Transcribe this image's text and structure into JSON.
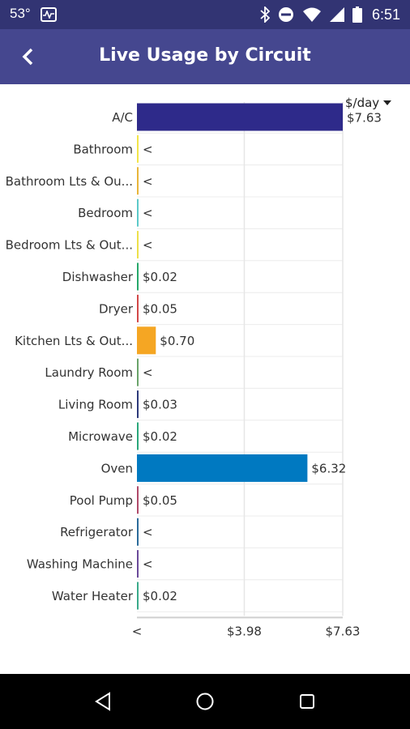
{
  "status_bar": {
    "temperature": "53°",
    "time": "6:51",
    "icons": [
      "activity-icon",
      "bluetooth-icon",
      "do-not-disturb-icon",
      "wifi-icon",
      "signal-icon",
      "battery-icon"
    ]
  },
  "app_bar": {
    "title": "Live Usage by Circuit",
    "back_icon": "chevron-left-icon"
  },
  "unit_selector": {
    "label": "$/day",
    "icon": "caret-down-icon"
  },
  "chart_data": {
    "type": "bar",
    "orientation": "horizontal",
    "unit": "$/day",
    "categories": [
      "A/C",
      "Bathroom",
      "Bathroom Lts & Ou...",
      "Bedroom",
      "Bedroom Lts & Out...",
      "Dishwasher",
      "Dryer",
      "Kitchen Lts & Out...",
      "Laundry Room",
      "Living Room",
      "Microwave",
      "Oven",
      "Pool Pump",
      "Refrigerator",
      "Washing Machine",
      "Water Heater"
    ],
    "values": [
      7.63,
      0.003,
      0.003,
      0.003,
      0.003,
      0.02,
      0.05,
      0.7,
      0.003,
      0.03,
      0.02,
      6.32,
      0.05,
      0.003,
      0.003,
      0.02
    ],
    "value_labels": [
      "$7.63",
      "<",
      "<",
      "<",
      "<",
      "$0.02",
      "$0.05",
      "$0.70",
      "<",
      "$0.03",
      "$0.02",
      "$6.32",
      "$0.05",
      "<",
      "<",
      "$0.02"
    ],
    "colors": [
      "#2e2a8a",
      "#f2e54a",
      "#e8b53a",
      "#5cc9c9",
      "#ede04a",
      "#27a86a",
      "#d24848",
      "#f5a623",
      "#6aa36a",
      "#2d3a7a",
      "#2aa77a",
      "#0079c1",
      "#b04a6a",
      "#2b6b9a",
      "#6b4a9a",
      "#3aaa8a"
    ],
    "xlim": [
      0,
      7.63
    ],
    "x_ticks": [
      0,
      3.98,
      7.63
    ],
    "x_tick_labels": [
      "<",
      "$3.98",
      "$7.63"
    ],
    "grid": true
  },
  "nav_bar": {
    "back": "nav-back-icon",
    "home": "nav-home-icon",
    "recents": "nav-recents-icon"
  }
}
